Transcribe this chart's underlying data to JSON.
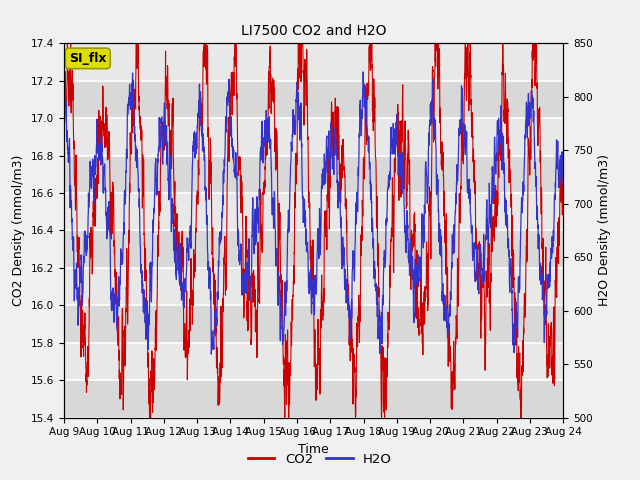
{
  "title": "LI7500 CO2 and H2O",
  "xlabel": "Time",
  "ylabel_left": "CO2 Density (mmol/m3)",
  "ylabel_right": "H2O Density (mmol/m3)",
  "co2_ylim": [
    15.4,
    17.4
  ],
  "h2o_ylim": [
    500,
    850
  ],
  "co2_yticks": [
    15.4,
    15.6,
    15.8,
    16.0,
    16.2,
    16.4,
    16.6,
    16.8,
    17.0,
    17.2,
    17.4
  ],
  "h2o_yticks": [
    500,
    550,
    600,
    650,
    700,
    750,
    800,
    850
  ],
  "x_tick_labels": [
    "Aug 9",
    "Aug 10",
    "Aug 11",
    "Aug 12",
    "Aug 13",
    "Aug 14",
    "Aug 15",
    "Aug 16",
    "Aug 17",
    "Aug 18",
    "Aug 19",
    "Aug 20",
    "Aug 21",
    "Aug 22",
    "Aug 23",
    "Aug 24"
  ],
  "co2_color": "#cc0000",
  "h2o_color": "#3333cc",
  "fig_bg_color": "#f0f0f0",
  "plot_bg_color": "#e0e0e0",
  "annotation_text": "SI_flx",
  "annotation_bg": "#dddd00",
  "legend_co2": "CO2",
  "legend_h2o": "H2O",
  "n_points": 3000
}
